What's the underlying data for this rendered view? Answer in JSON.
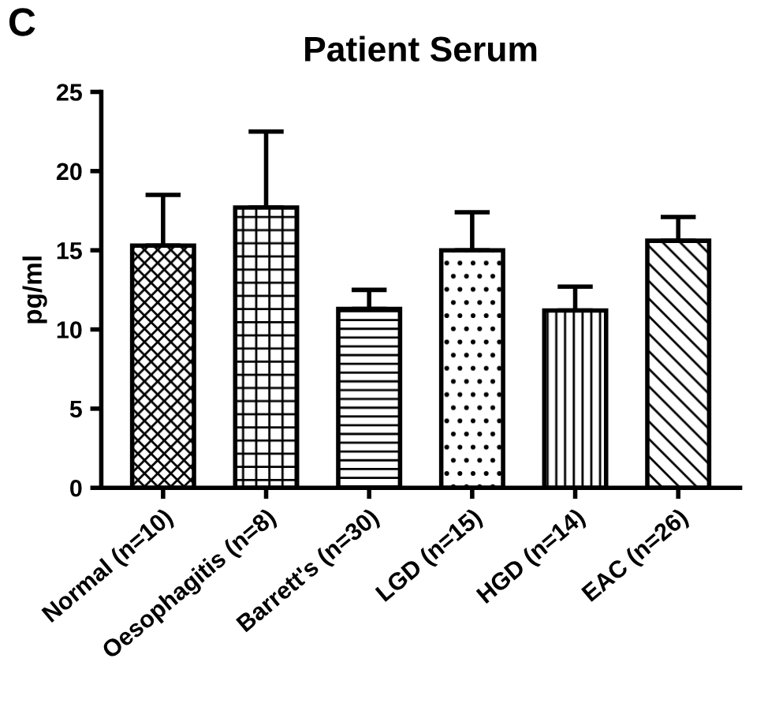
{
  "chart_data": {
    "type": "bar",
    "title": "Patient Serum",
    "ylabel": "pg/ml",
    "categories": [
      "Normal (n=10)",
      "Oesophagitis (n=8)",
      "Barrett's (n=30)",
      "LGD (n=15)",
      "HGD (n=14)",
      "EAC (n=26)"
    ],
    "values": [
      15.3,
      17.7,
      11.3,
      15.0,
      11.2,
      15.6
    ],
    "errors": [
      [
        15.3,
        18.5
      ],
      [
        17.7,
        22.5
      ],
      [
        11.3,
        12.5
      ],
      [
        15.0,
        17.4
      ],
      [
        11.2,
        12.7
      ],
      [
        15.6,
        17.1
      ]
    ],
    "color": "#000000",
    "ylim": [
      0,
      25
    ],
    "yticks": [
      0,
      5,
      10,
      15,
      20,
      25
    ],
    "grid": false,
    "annotations": [
      "C"
    ]
  }
}
